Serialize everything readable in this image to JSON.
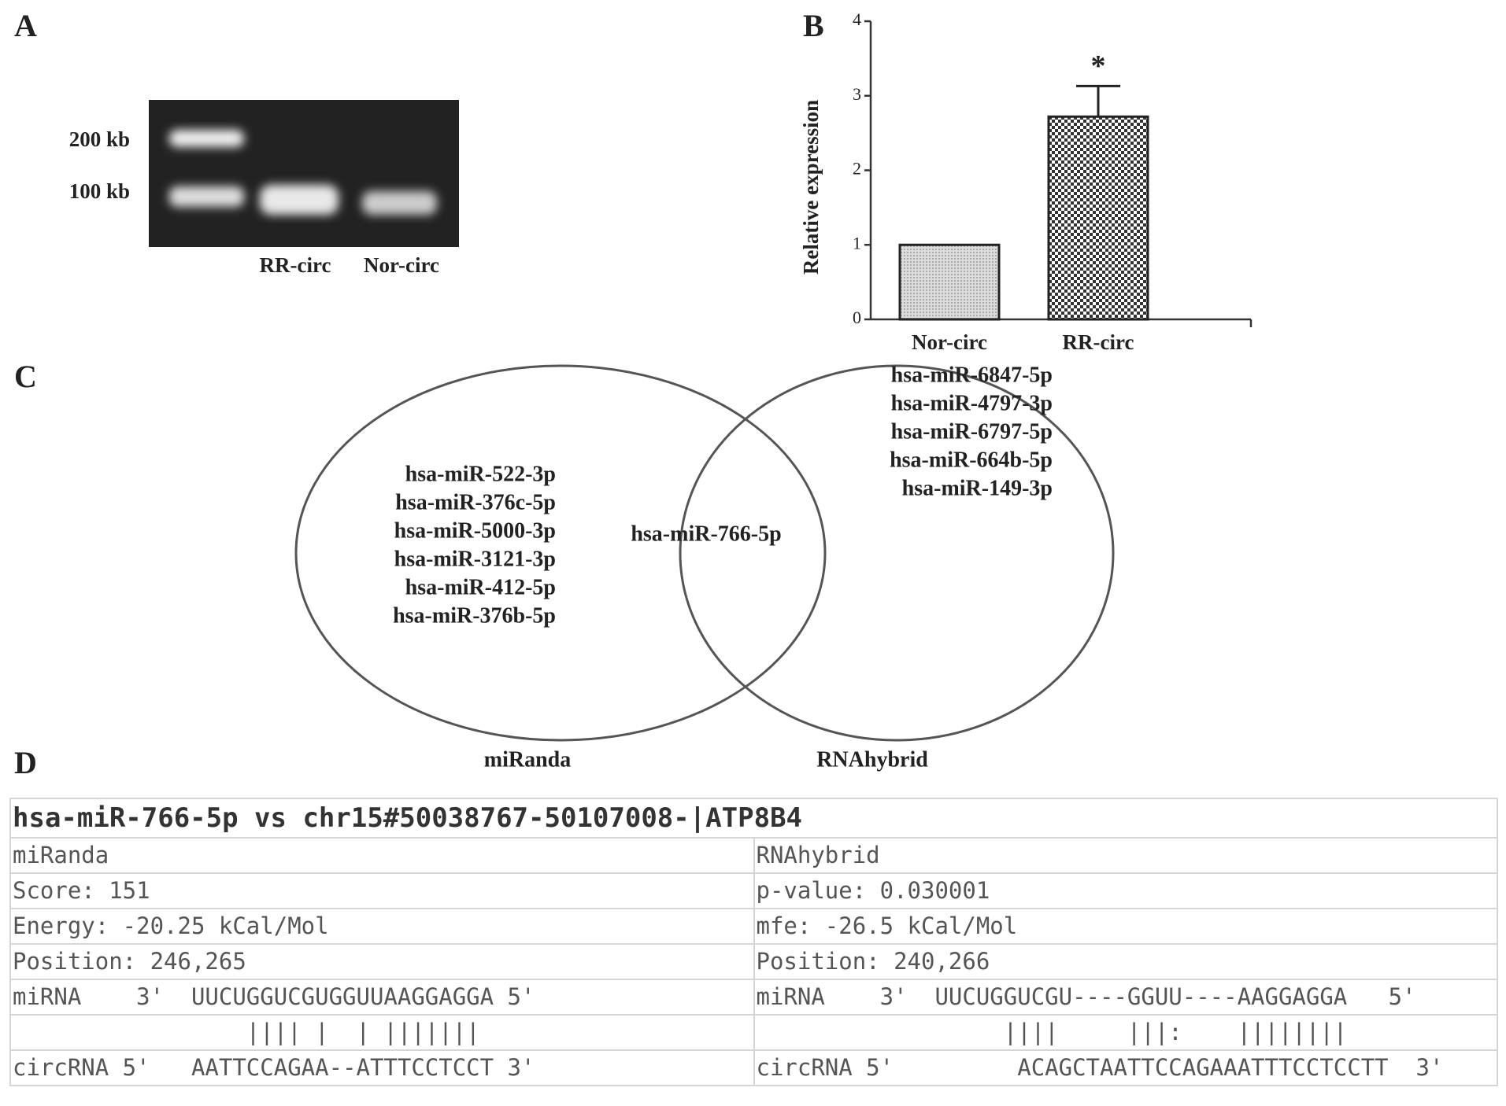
{
  "panels": [
    "A",
    "B",
    "C",
    "D"
  ],
  "gel": {
    "markers": [
      "200 kb",
      "100 kb"
    ],
    "lanes": [
      "RR-circ",
      "Nor-circ"
    ]
  },
  "chart_data": {
    "type": "bar",
    "ylabel": "Relative expression",
    "categories": [
      "Nor-circ",
      "RR-circ"
    ],
    "values": [
      1,
      2.72
    ],
    "errors": [
      null,
      0.41
    ],
    "annotation": "*",
    "ylim": [
      0,
      4
    ],
    "yticks": [
      0,
      1,
      2,
      3,
      4
    ]
  },
  "venn": {
    "sets": [
      {
        "name": "miRanda",
        "items": [
          "hsa-miR-522-3p",
          "hsa-miR-376c-5p",
          "hsa-miR-5000-3p",
          "hsa-miR-3121-3p",
          "hsa-miR-412-5p",
          "hsa-miR-376b-5p"
        ]
      },
      {
        "name": "RNAhybrid",
        "items": [
          "hsa-miR-6847-5p",
          "hsa-miR-4797-3p",
          "hsa-miR-6797-5p",
          "hsa-miR-664b-5p",
          "hsa-miR-149-3p"
        ]
      }
    ],
    "intersection": [
      "hsa-miR-766-5p"
    ]
  },
  "table": {
    "title": "hsa-miR-766-5p vs chr15#50038767-50107008-|ATP8B4",
    "rows": [
      [
        "miRanda",
        "RNAhybrid"
      ],
      [
        "Score: 151",
        "p-value: 0.030001"
      ],
      [
        "Energy: -20.25 kCal/Mol",
        "mfe: -26.5 kCal/Mol"
      ],
      [
        "Position: 246,265",
        "Position: 240,266"
      ],
      [
        "miRNA    3'  UUCUGGUCGUGGUUAAGGAGGA 5'",
        "miRNA    3'  UUCUGGUCGU----GGUU----AAGGAGGA   5'"
      ],
      [
        "                 |||| |  | |||||||",
        "                  ||||     |||:    ||||||||"
      ],
      [
        "circRNA 5'   AATTCCAGAA--ATTTCCTCCT 3'",
        "circRNA 5'         ACAGCTAATTCCAGAAATTTCCTCCTT  3'"
      ]
    ]
  }
}
